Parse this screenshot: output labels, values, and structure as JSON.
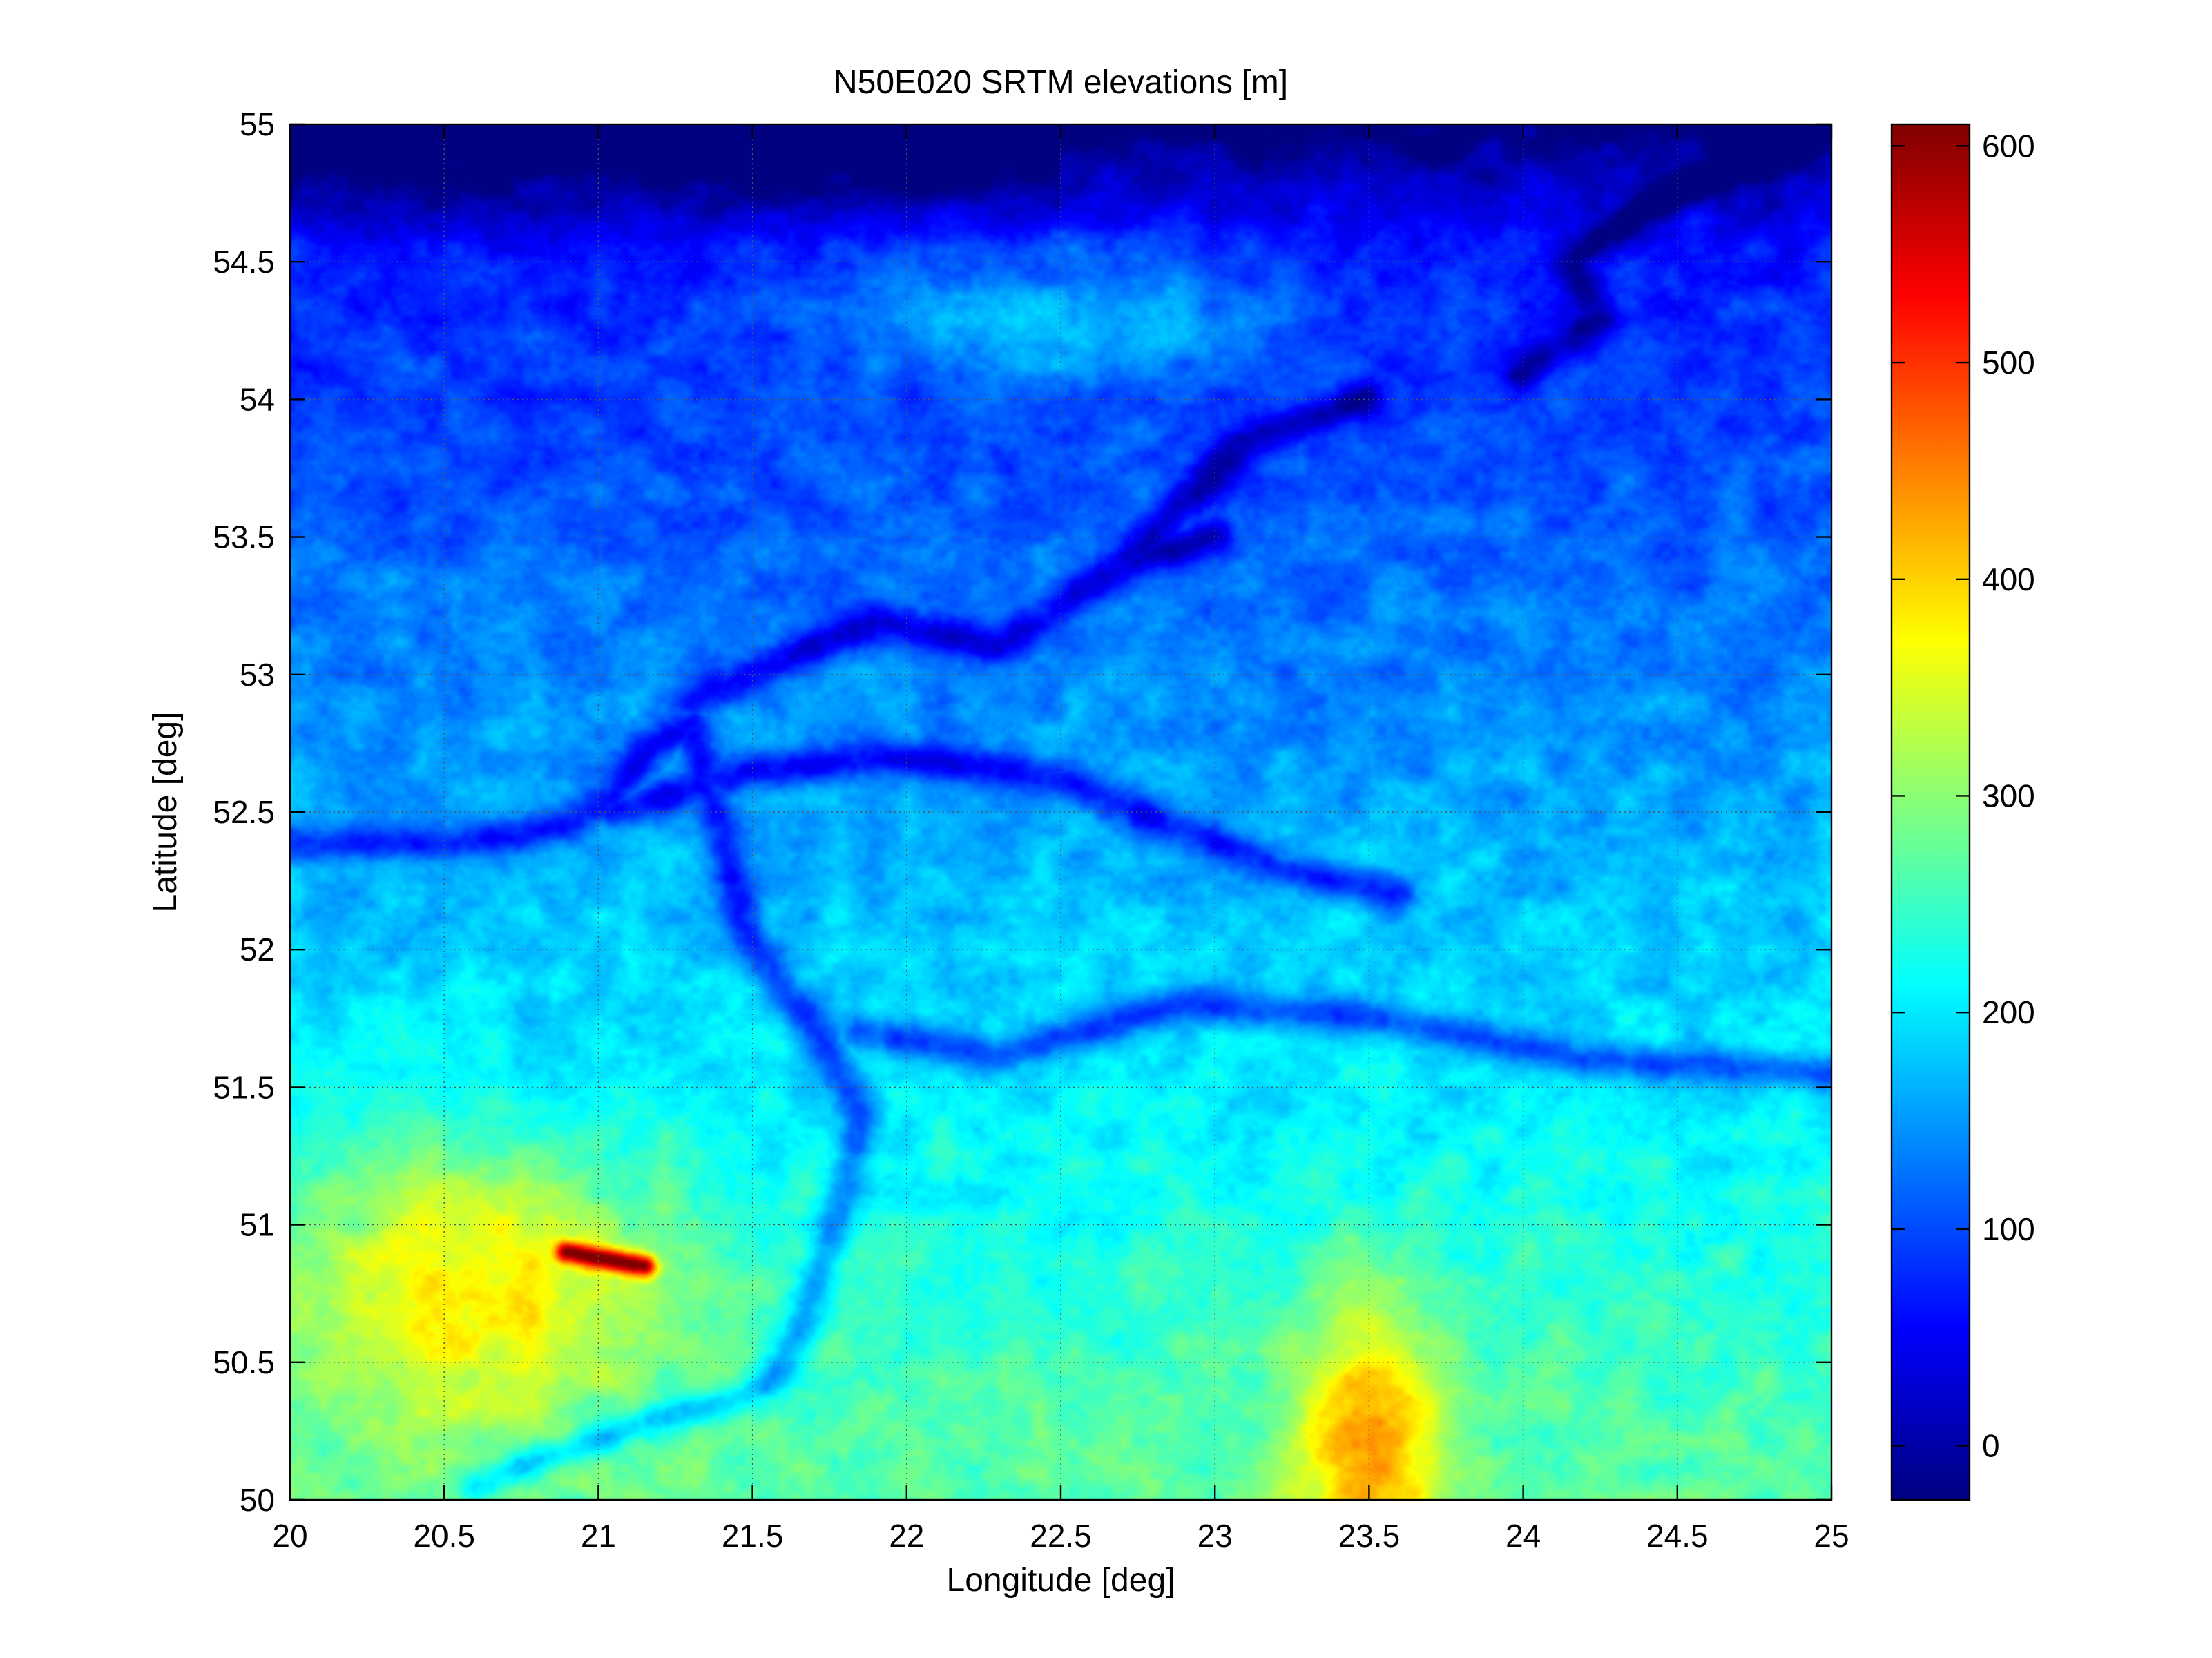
{
  "chart_data": [
    {
      "type": "heatmap",
      "title": "N50E020 SRTM elevations [m]",
      "xlabel": "Longitude [deg]",
      "ylabel": "Latitude [deg]",
      "xlim": [
        20,
        25
      ],
      "ylim": [
        50,
        55
      ],
      "xticks": [
        20,
        20.5,
        21,
        21.5,
        22,
        22.5,
        23,
        23.5,
        24,
        24.5,
        25
      ],
      "xtick_labels": [
        "20",
        "20.5",
        "21",
        "21.5",
        "22",
        "22.5",
        "23",
        "23.5",
        "24",
        "24.5",
        "25"
      ],
      "yticks": [
        50,
        50.5,
        51,
        51.5,
        52,
        52.5,
        53,
        53.5,
        54,
        54.5,
        55
      ],
      "ytick_labels": [
        "50",
        "50.5",
        "51",
        "51.5",
        "52",
        "52.5",
        "53",
        "53.5",
        "54",
        "54.5",
        "55"
      ],
      "grid": true,
      "colormap": "jet",
      "clim": [
        -25,
        610
      ],
      "colorbar": {
        "location": "right",
        "ticks": [
          0,
          100,
          200,
          300,
          400,
          500,
          600
        ],
        "tick_labels": [
          "0",
          "100",
          "200",
          "300",
          "400",
          "500",
          "600"
        ]
      },
      "features": {
        "rivers": [
          {
            "lon": [
              20.0,
              20.5,
              20.9,
              21.05,
              21.15,
              21.3,
              21.5,
              21.7,
              21.85,
              21.8,
              21.72,
              21.65,
              21.55,
              21.4,
              21.2,
              21.0,
              20.8,
              20.6
            ],
            "lat": [
              52.38,
              52.38,
              52.45,
              52.55,
              52.72,
              52.82,
              52.0,
              51.72,
              51.4,
              51.1,
              50.85,
              50.6,
              50.42,
              50.35,
              50.3,
              50.22,
              50.15,
              50.05
            ]
          },
          {
            "lon": [
              21.05,
              21.5,
              22.0,
              22.5,
              22.8,
              23.2,
              23.6
            ],
            "lat": [
              52.5,
              52.65,
              52.7,
              52.62,
              52.48,
              52.3,
              52.2
            ]
          },
          {
            "lon": [
              21.85,
              22.3,
              22.9,
              23.5,
              24.2,
              25.0
            ],
            "lat": [
              51.7,
              51.62,
              51.8,
              51.75,
              51.6,
              51.55
            ]
          },
          {
            "lon": [
              21.3,
              21.9,
              22.3,
              22.5,
              22.7,
              23.0
            ],
            "lat": [
              52.9,
              53.2,
              53.1,
              53.25,
              53.4,
              53.5
            ]
          },
          {
            "lon": [
              22.7,
              23.1,
              23.5
            ],
            "lat": [
              53.4,
              53.85,
              54.0
            ]
          },
          {
            "lon": [
              24.0,
              24.25,
              24.15,
              24.4,
              24.7,
              24.9
            ],
            "lat": [
              54.1,
              54.3,
              54.5,
              54.7,
              54.85,
              54.95
            ]
          }
        ],
        "ridge_max": {
          "lon": [
            20.9,
            21.15
          ],
          "lat": [
            50.9,
            50.85
          ]
        }
      }
    }
  ]
}
